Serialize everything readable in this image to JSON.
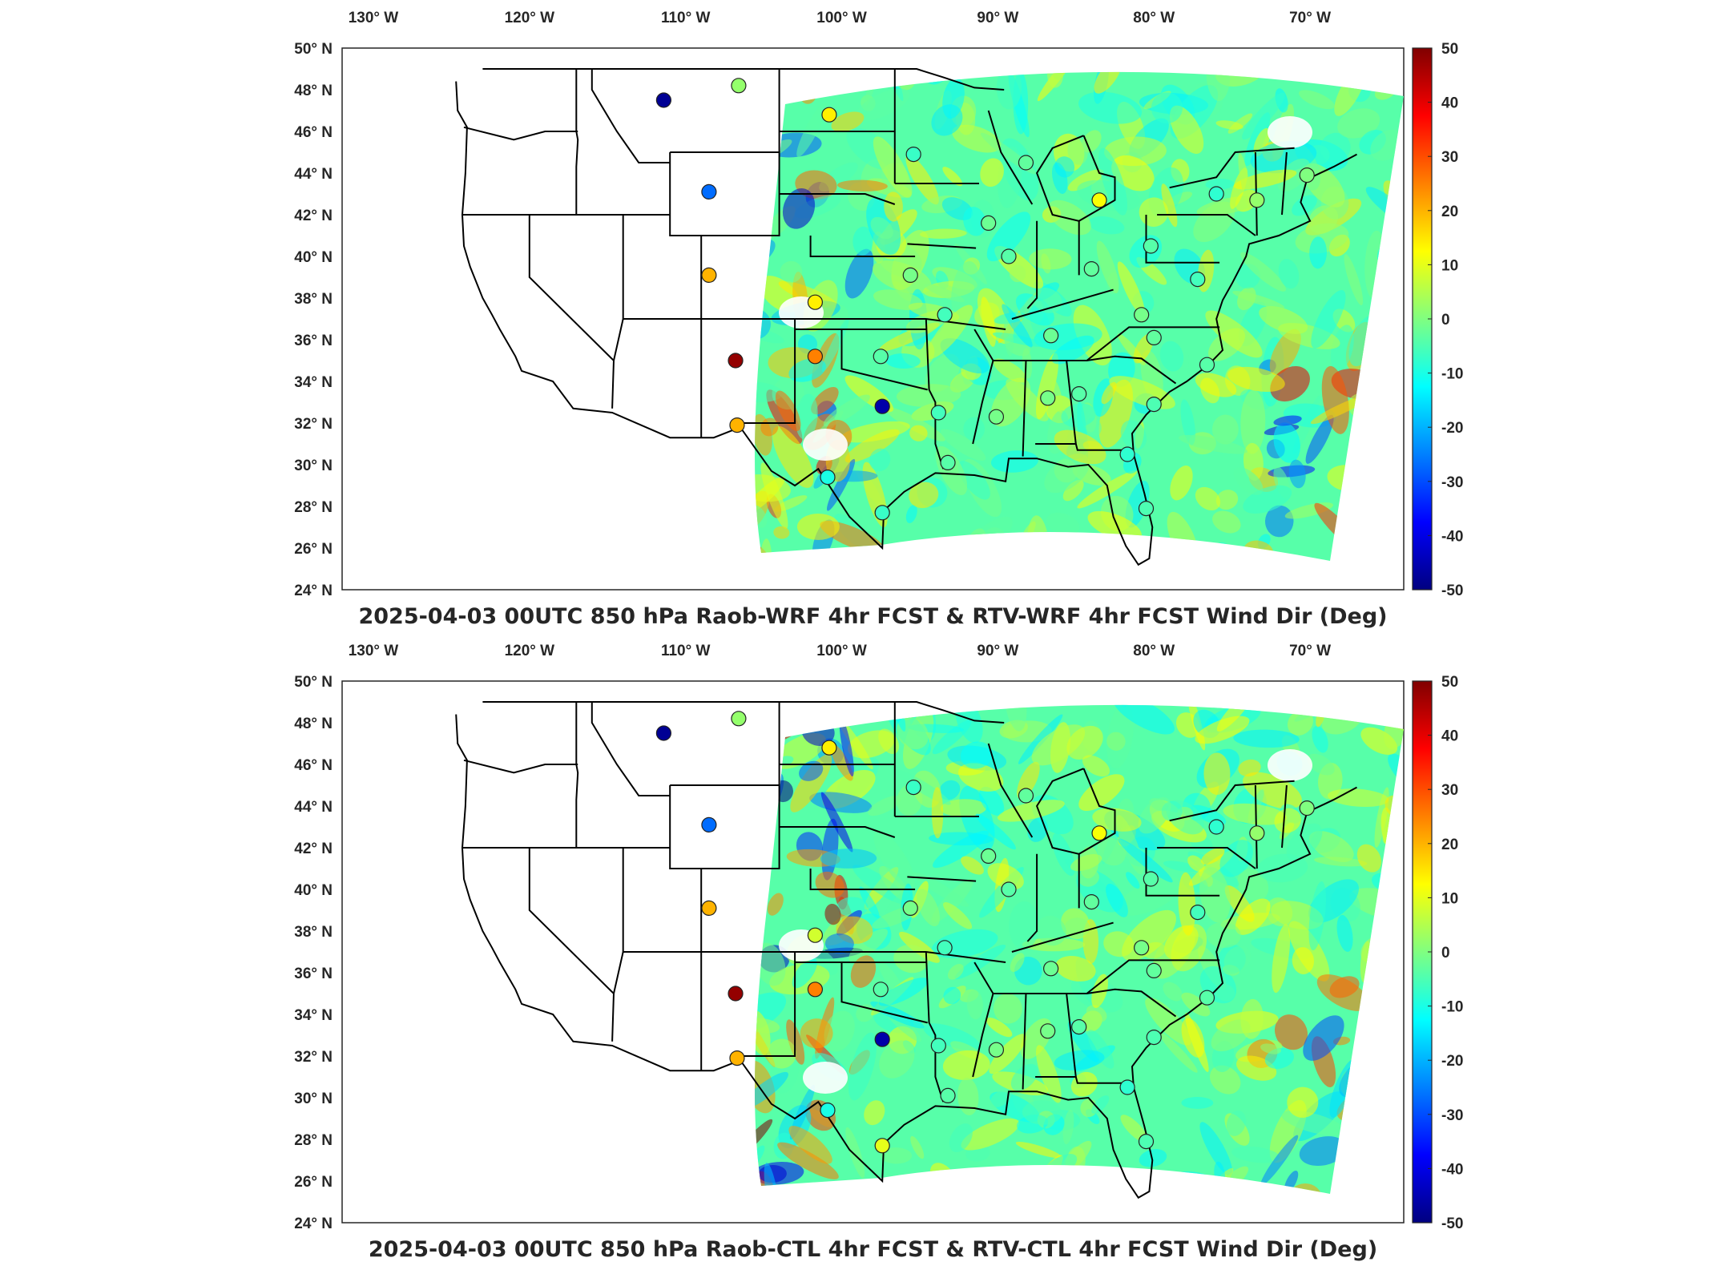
{
  "colorbar": {
    "min": -50,
    "max": 50,
    "ticks": [
      "50",
      "40",
      "30",
      "20",
      "10",
      "0",
      "-10",
      "-20",
      "-30",
      "-40",
      "-50"
    ],
    "colors": [
      "#000080",
      "#0000ff",
      "#0080ff",
      "#00ffff",
      "#80ff80",
      "#ffff00",
      "#ff8000",
      "#ff0000",
      "#800000"
    ]
  },
  "axes": {
    "lon_ticks": [
      "130",
      "120",
      "110",
      "100",
      "90",
      "80",
      "70"
    ],
    "lon_suffix": "W",
    "lat_ticks": [
      "50",
      "48",
      "46",
      "44",
      "42",
      "40",
      "38",
      "36",
      "34",
      "32",
      "30",
      "28",
      "26",
      "24"
    ],
    "lat_suffix": "N",
    "degree": "°"
  },
  "panels": [
    {
      "title": "2025-04-03 00UTC 850 hPa Raob-WRF 4hr FCST & RTV-WRF 4hr FCST Wind Dir (Deg)",
      "stations": [
        {
          "lon": -111.4,
          "lat": 47.5,
          "value": -48
        },
        {
          "lon": -106.6,
          "lat": 48.2,
          "value": 2
        },
        {
          "lon": -100.8,
          "lat": 46.8,
          "value": 14
        },
        {
          "lon": -108.5,
          "lat": 43.1,
          "value": -27
        },
        {
          "lon": -108.5,
          "lat": 39.1,
          "value": 20
        },
        {
          "lon": -106.8,
          "lat": 35.0,
          "value": 48
        },
        {
          "lon": -106.7,
          "lat": 31.9,
          "value": 20
        },
        {
          "lon": -101.7,
          "lat": 35.2,
          "value": 25
        },
        {
          "lon": -101.7,
          "lat": 37.8,
          "value": 14
        },
        {
          "lon": -95.6,
          "lat": 39.1,
          "value": -1
        },
        {
          "lon": -97.4,
          "lat": 32.8,
          "value": -46
        },
        {
          "lon": -97.5,
          "lat": 35.2,
          "value": -4
        },
        {
          "lon": -95.4,
          "lat": 44.9,
          "value": -7
        },
        {
          "lon": -93.4,
          "lat": 37.2,
          "value": -6
        },
        {
          "lon": -88.2,
          "lat": 44.5,
          "value": -3
        },
        {
          "lon": -90.6,
          "lat": 41.6,
          "value": -2
        },
        {
          "lon": -89.3,
          "lat": 40.0,
          "value": -4
        },
        {
          "lon": -83.5,
          "lat": 42.7,
          "value": 12
        },
        {
          "lon": -84.0,
          "lat": 39.4,
          "value": -3
        },
        {
          "lon": -80.2,
          "lat": 40.5,
          "value": -4
        },
        {
          "lon": -76.0,
          "lat": 43.0,
          "value": -8
        },
        {
          "lon": -73.4,
          "lat": 42.7,
          "value": 2
        },
        {
          "lon": -70.2,
          "lat": 43.9,
          "value": 0
        },
        {
          "lon": -80.8,
          "lat": 37.2,
          "value": -1
        },
        {
          "lon": -86.6,
          "lat": 36.2,
          "value": -2
        },
        {
          "lon": -80.0,
          "lat": 36.1,
          "value": -3
        },
        {
          "lon": -77.2,
          "lat": 38.9,
          "value": -6
        },
        {
          "lon": -76.6,
          "lat": 34.8,
          "value": -4
        },
        {
          "lon": -80.0,
          "lat": 32.9,
          "value": -5
        },
        {
          "lon": -84.8,
          "lat": 33.4,
          "value": -4
        },
        {
          "lon": -86.8,
          "lat": 33.2,
          "value": -1
        },
        {
          "lon": -90.1,
          "lat": 32.3,
          "value": -1
        },
        {
          "lon": -93.8,
          "lat": 32.5,
          "value": -6
        },
        {
          "lon": -93.2,
          "lat": 30.1,
          "value": -4
        },
        {
          "lon": -97.4,
          "lat": 27.7,
          "value": -7
        },
        {
          "lon": -100.9,
          "lat": 29.4,
          "value": -10
        },
        {
          "lon": -81.7,
          "lat": 30.5,
          "value": -8
        },
        {
          "lon": -80.5,
          "lat": 27.9,
          "value": -5
        }
      ]
    },
    {
      "title": "2025-04-03 00UTC 850 hPa Raob-CTL 4hr FCST & RTV-CTL 4hr FCST Wind Dir (Deg)",
      "stations": [
        {
          "lon": -111.4,
          "lat": 47.5,
          "value": -48
        },
        {
          "lon": -106.6,
          "lat": 48.2,
          "value": 2
        },
        {
          "lon": -100.8,
          "lat": 46.8,
          "value": 14
        },
        {
          "lon": -108.5,
          "lat": 43.1,
          "value": -27
        },
        {
          "lon": -108.5,
          "lat": 39.1,
          "value": 20
        },
        {
          "lon": -106.8,
          "lat": 35.0,
          "value": 48
        },
        {
          "lon": -106.7,
          "lat": 31.9,
          "value": 20
        },
        {
          "lon": -101.7,
          "lat": 35.2,
          "value": 25
        },
        {
          "lon": -101.7,
          "lat": 37.8,
          "value": 8
        },
        {
          "lon": -95.6,
          "lat": 39.1,
          "value": -1
        },
        {
          "lon": -97.4,
          "lat": 32.8,
          "value": -46
        },
        {
          "lon": -97.5,
          "lat": 35.2,
          "value": -4
        },
        {
          "lon": -95.4,
          "lat": 44.9,
          "value": -7
        },
        {
          "lon": -93.4,
          "lat": 37.2,
          "value": -6
        },
        {
          "lon": -88.2,
          "lat": 44.5,
          "value": -3
        },
        {
          "lon": -90.6,
          "lat": 41.6,
          "value": -2
        },
        {
          "lon": -89.3,
          "lat": 40.0,
          "value": -4
        },
        {
          "lon": -83.5,
          "lat": 42.7,
          "value": 12
        },
        {
          "lon": -84.0,
          "lat": 39.4,
          "value": -3
        },
        {
          "lon": -80.2,
          "lat": 40.5,
          "value": -4
        },
        {
          "lon": -76.0,
          "lat": 43.0,
          "value": -8
        },
        {
          "lon": -73.4,
          "lat": 42.7,
          "value": 2
        },
        {
          "lon": -70.2,
          "lat": 43.9,
          "value": 0
        },
        {
          "lon": -80.8,
          "lat": 37.2,
          "value": -1
        },
        {
          "lon": -86.6,
          "lat": 36.2,
          "value": -2
        },
        {
          "lon": -80.0,
          "lat": 36.1,
          "value": -3
        },
        {
          "lon": -77.2,
          "lat": 38.9,
          "value": -6
        },
        {
          "lon": -76.6,
          "lat": 34.8,
          "value": -4
        },
        {
          "lon": -80.0,
          "lat": 32.9,
          "value": -5
        },
        {
          "lon": -84.8,
          "lat": 33.4,
          "value": -4
        },
        {
          "lon": -86.8,
          "lat": 33.2,
          "value": -1
        },
        {
          "lon": -90.1,
          "lat": 32.3,
          "value": -1
        },
        {
          "lon": -93.8,
          "lat": 32.5,
          "value": -6
        },
        {
          "lon": -93.2,
          "lat": 30.1,
          "value": -4
        },
        {
          "lon": -97.4,
          "lat": 27.7,
          "value": 10
        },
        {
          "lon": -100.9,
          "lat": 29.4,
          "value": -10
        },
        {
          "lon": -81.7,
          "lat": 30.5,
          "value": -8
        },
        {
          "lon": -80.5,
          "lat": 27.9,
          "value": -5
        }
      ]
    }
  ]
}
